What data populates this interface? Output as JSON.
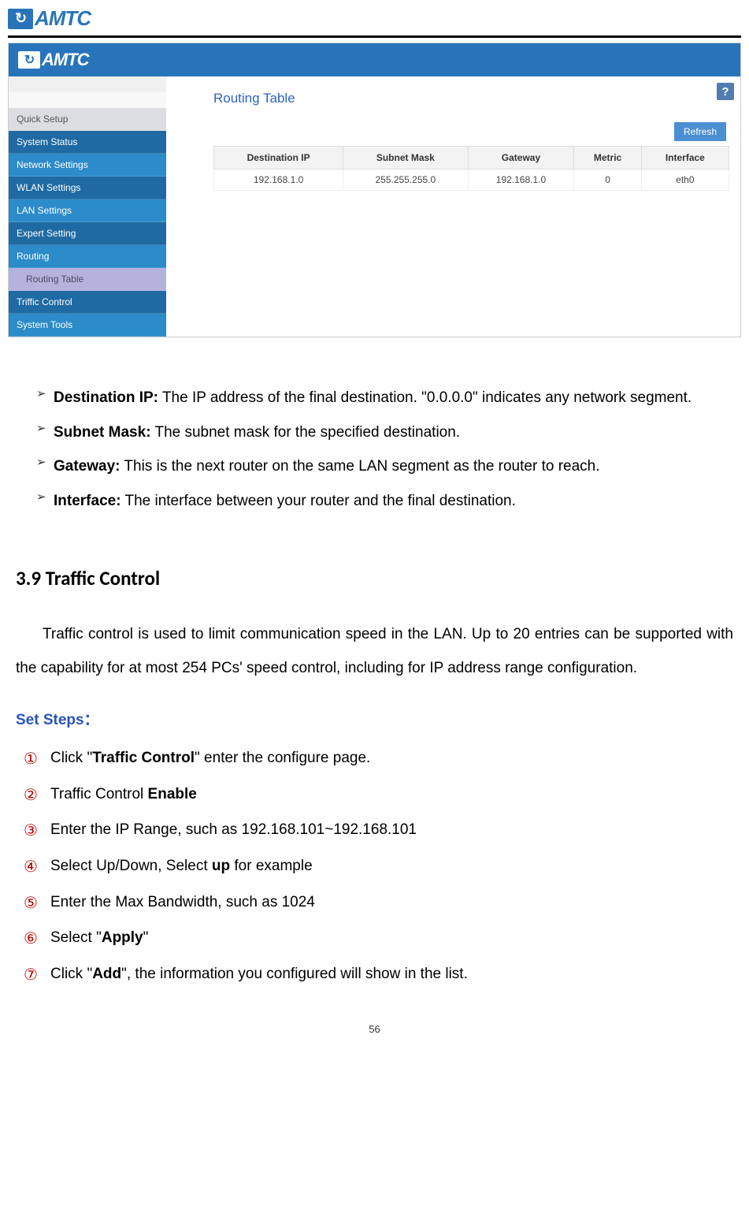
{
  "brand": "AMTC",
  "screenshot": {
    "brand": "AMTC",
    "sidebar": {
      "items": [
        {
          "label": "Quick Setup",
          "cls": "si-gray"
        },
        {
          "label": "System Status",
          "cls": "si-dark"
        },
        {
          "label": "Network Settings",
          "cls": "si-blue"
        },
        {
          "label": "WLAN Settings",
          "cls": "si-dark"
        },
        {
          "label": "LAN Settings",
          "cls": "si-blue"
        },
        {
          "label": "Expert Setting",
          "cls": "si-dark"
        },
        {
          "label": "Routing",
          "cls": "si-blue"
        },
        {
          "label": "Routing Table",
          "cls": "si-sub"
        },
        {
          "label": "Triffic Control",
          "cls": "si-dark"
        },
        {
          "label": "System Tools",
          "cls": "si-blue"
        }
      ]
    },
    "help_glyph": "?",
    "title": "Routing Table",
    "refresh_label": "Refresh",
    "table": {
      "columns": [
        "Destination IP",
        "Subnet Mask",
        "Gateway",
        "Metric",
        "Interface"
      ],
      "rows": [
        [
          "192.168.1.0",
          "255.255.255.0",
          "192.168.1.0",
          "0",
          "eth0"
        ]
      ]
    }
  },
  "bullets": [
    {
      "term": "Destination IP:",
      "text": " The IP address of the final destination. \"0.0.0.0\" indicates any network segment."
    },
    {
      "term": "Subnet Mask:",
      "text": " The subnet mask for the specified destination."
    },
    {
      "term": "Gateway:",
      "text": " This is the next router on the same LAN segment as the router to reach."
    },
    {
      "term": "Interface:",
      "text": " The interface between your router and the final destination."
    }
  ],
  "section_title": "3.9 Traffic Control",
  "intro": "Traffic control is used to limit communication speed in the LAN. Up to 20 entries can be supported with the capability for at most 254 PCs' speed control, including for IP address range configuration.",
  "set_steps_label": "Set Steps：",
  "steps": [
    {
      "num": "①",
      "pre": "Click \"",
      "bold": "Traffic Control",
      "post": "\" enter the configure page."
    },
    {
      "num": "②",
      "pre": "Traffic Control ",
      "bold": "Enable",
      "post": ""
    },
    {
      "num": "③",
      "pre": "Enter the IP Range, such as 192.168.101~192.168.101",
      "bold": "",
      "post": ""
    },
    {
      "num": "④",
      "pre": "Select Up/Down, Select ",
      "bold": "up",
      "post": " for example"
    },
    {
      "num": "⑤",
      "pre": "Enter the Max Bandwidth, such as 1024",
      "bold": "",
      "post": ""
    },
    {
      "num": "⑥",
      "pre": "Select \"",
      "bold": "Apply",
      "post": "\""
    },
    {
      "num": "⑦",
      "pre": "Click \"",
      "bold": "Add",
      "post": "\", the information you configured will show in the list."
    }
  ],
  "page_number": "56"
}
